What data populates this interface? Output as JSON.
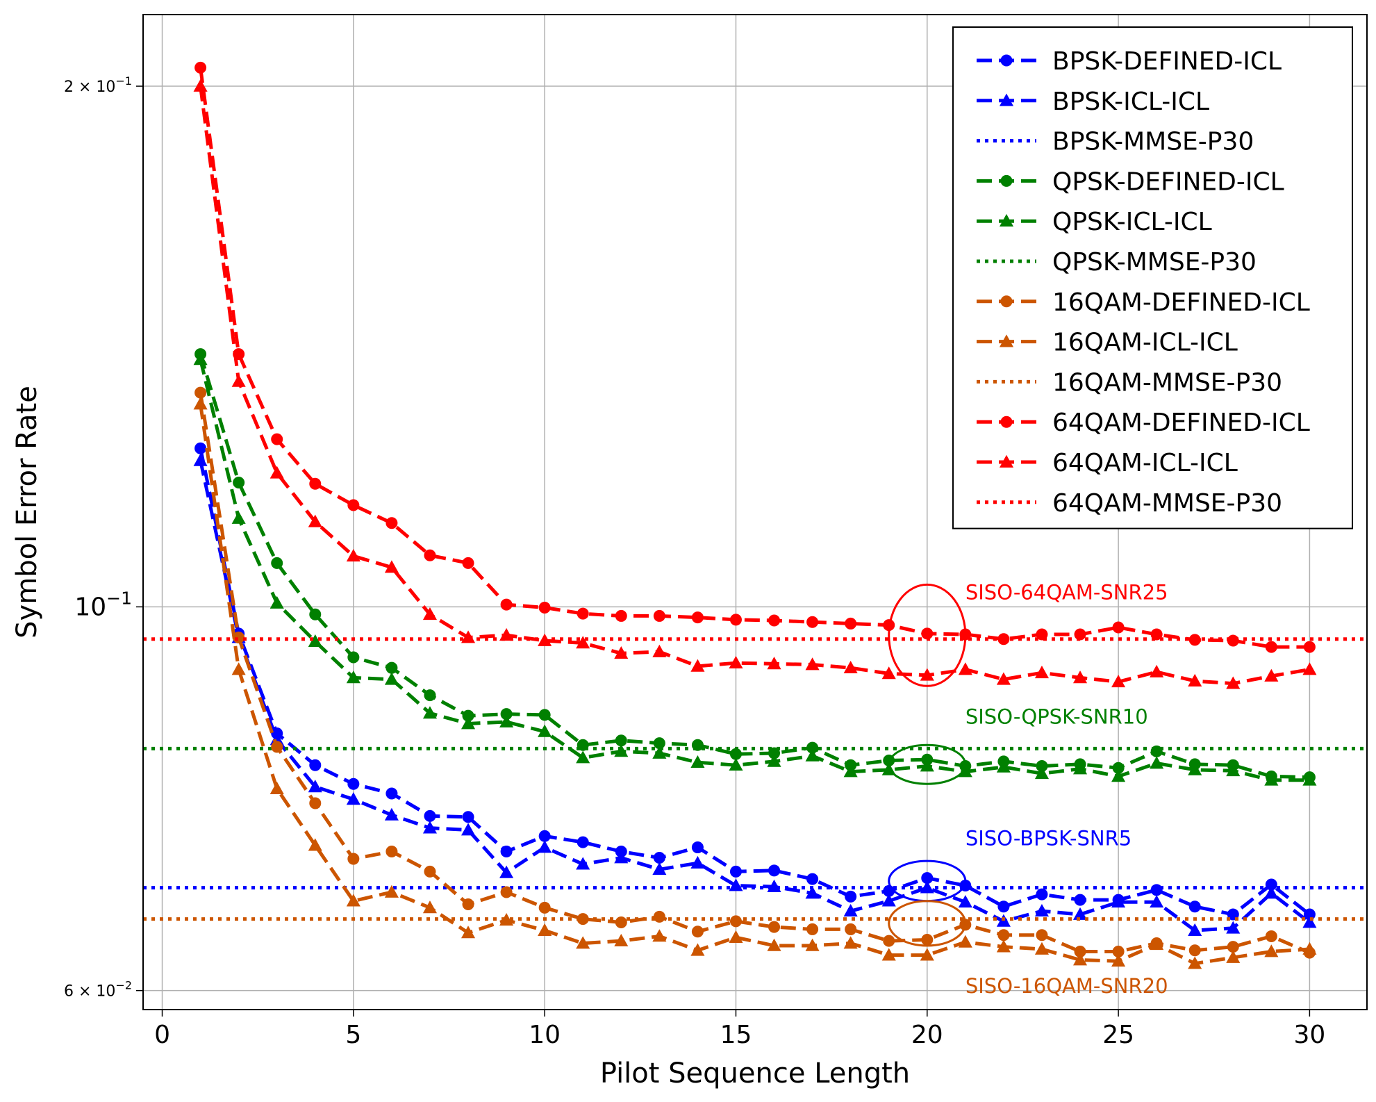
{
  "chart_data": {
    "type": "line",
    "title": "",
    "xlabel": "Pilot Sequence Length",
    "ylabel": "Symbol Error Rate",
    "yscale": "log",
    "xlim": [
      -0.5,
      31.5
    ],
    "ylim": [
      0.0585,
      0.22
    ],
    "grid": true,
    "legend_position": "top-right",
    "x_ticks": [
      0,
      5,
      10,
      15,
      20,
      25,
      30
    ],
    "x_tick_labels": [
      "0",
      "5",
      "10",
      "15",
      "20",
      "25",
      "30"
    ],
    "y_ticks": [
      0.06,
      0.1,
      0.2
    ],
    "y_tick_labels": [
      {
        "base": "6 × 10",
        "exp": "−2"
      },
      {
        "base": "10",
        "exp": "−1"
      },
      {
        "base": "2 × 10",
        "exp": "−1"
      }
    ],
    "x": [
      1,
      2,
      3,
      4,
      5,
      6,
      7,
      8,
      9,
      10,
      11,
      12,
      13,
      14,
      15,
      16,
      17,
      18,
      19,
      20,
      21,
      22,
      23,
      24,
      25,
      26,
      27,
      28,
      29,
      30
    ],
    "colors": {
      "BPSK": "#0000ff",
      "QPSK": "#008000",
      "16QAM": "#cc5500",
      "64QAM": "#ff0000"
    },
    "series": [
      {
        "name": "BPSK-DEFINED-ICL",
        "group": "BPSK",
        "style": "dashed",
        "marker": "circle",
        "values": [
          0.1235,
          0.0965,
          0.0845,
          0.081,
          0.079,
          0.078,
          0.0757,
          0.0756,
          0.0722,
          0.0737,
          0.0731,
          0.0722,
          0.0716,
          0.0726,
          0.0703,
          0.0704,
          0.0696,
          0.068,
          0.0685,
          0.0697,
          0.069,
          0.0671,
          0.0682,
          0.0677,
          0.0677,
          0.0686,
          0.0671,
          0.0664,
          0.0691,
          0.0664
        ]
      },
      {
        "name": "BPSK-ICL-ICL",
        "group": "BPSK",
        "style": "dashed",
        "marker": "triangle",
        "values": [
          0.1215,
          0.096,
          0.0838,
          0.0787,
          0.0774,
          0.0758,
          0.0745,
          0.0743,
          0.0702,
          0.0726,
          0.071,
          0.0716,
          0.0705,
          0.0711,
          0.069,
          0.0689,
          0.0683,
          0.0667,
          0.0676,
          0.0688,
          0.0675,
          0.0658,
          0.0667,
          0.0664,
          0.0675,
          0.0675,
          0.065,
          0.0652,
          0.0683,
          0.0657
        ]
      },
      {
        "name": "BPSK-MMSE-P30",
        "group": "BPSK",
        "style": "dotted",
        "marker": "none",
        "constant": 0.0688
      },
      {
        "name": "QPSK-DEFINED-ICL",
        "group": "QPSK",
        "style": "dashed",
        "marker": "circle",
        "values": [
          0.14,
          0.118,
          0.106,
          0.099,
          0.0935,
          0.0922,
          0.0889,
          0.0865,
          0.0867,
          0.0866,
          0.0832,
          0.0837,
          0.0834,
          0.0832,
          0.0822,
          0.0823,
          0.0829,
          0.081,
          0.0815,
          0.0816,
          0.0809,
          0.0814,
          0.0809,
          0.0811,
          0.0807,
          0.0825,
          0.0811,
          0.081,
          0.0798,
          0.0797
        ]
      },
      {
        "name": "QPSK-ICL-ICL",
        "group": "QPSK",
        "style": "dashed",
        "marker": "triangle",
        "values": [
          0.139,
          0.1125,
          0.1005,
          0.0955,
          0.091,
          0.0908,
          0.0868,
          0.0856,
          0.0858,
          0.0847,
          0.0818,
          0.0825,
          0.0823,
          0.0813,
          0.081,
          0.0814,
          0.082,
          0.0803,
          0.0805,
          0.0809,
          0.0803,
          0.0808,
          0.0801,
          0.0806,
          0.0798,
          0.0812,
          0.0805,
          0.0804,
          0.0794,
          0.0794
        ]
      },
      {
        "name": "QPSK-MMSE-P30",
        "group": "QPSK",
        "style": "dotted",
        "marker": "none",
        "constant": 0.0828
      },
      {
        "name": "16QAM-DEFINED-ICL",
        "group": "16QAM",
        "style": "dashed",
        "marker": "circle",
        "values": [
          0.133,
          0.096,
          0.083,
          0.077,
          0.0715,
          0.0722,
          0.0703,
          0.0673,
          0.0684,
          0.067,
          0.066,
          0.0657,
          0.0662,
          0.0649,
          0.0658,
          0.0653,
          0.0651,
          0.0651,
          0.0641,
          0.0642,
          0.0655,
          0.0646,
          0.0646,
          0.0632,
          0.0632,
          0.0639,
          0.0633,
          0.0636,
          0.0645,
          0.0631
        ]
      },
      {
        "name": "16QAM-ICL-ICL",
        "group": "16QAM",
        "style": "dashed",
        "marker": "triangle",
        "values": [
          0.131,
          0.092,
          0.0785,
          0.0728,
          0.0676,
          0.0684,
          0.067,
          0.0648,
          0.0659,
          0.065,
          0.0639,
          0.0641,
          0.0645,
          0.0633,
          0.0644,
          0.0637,
          0.0637,
          0.0639,
          0.0629,
          0.0629,
          0.064,
          0.0636,
          0.0634,
          0.0625,
          0.0624,
          0.0638,
          0.0622,
          0.0627,
          0.0632,
          0.0634
        ]
      },
      {
        "name": "16QAM-MMSE-P30",
        "group": "16QAM",
        "style": "dotted",
        "marker": "none",
        "constant": 0.066
      },
      {
        "name": "64QAM-DEFINED-ICL",
        "group": "64QAM",
        "style": "dashed",
        "marker": "circle",
        "values": [
          0.205,
          0.14,
          0.125,
          0.1178,
          0.1145,
          0.1118,
          0.1071,
          0.106,
          0.1003,
          0.0999,
          0.0991,
          0.0988,
          0.0988,
          0.0986,
          0.0983,
          0.0982,
          0.098,
          0.0978,
          0.0976,
          0.0965,
          0.0964,
          0.0958,
          0.0964,
          0.0964,
          0.0973,
          0.0964,
          0.0957,
          0.0956,
          0.0948,
          0.0948
        ]
      },
      {
        "name": "64QAM-ICL-ICL",
        "group": "64QAM",
        "style": "dashed",
        "marker": "triangle",
        "values": [
          0.2,
          0.135,
          0.1195,
          0.112,
          0.107,
          0.1054,
          0.099,
          0.096,
          0.0963,
          0.0956,
          0.0953,
          0.094,
          0.0942,
          0.0924,
          0.0928,
          0.0927,
          0.0926,
          0.0922,
          0.0915,
          0.0913,
          0.092,
          0.0908,
          0.0916,
          0.091,
          0.0905,
          0.0917,
          0.0906,
          0.0903,
          0.0912,
          0.092
        ]
      },
      {
        "name": "64QAM-MMSE-P30",
        "group": "64QAM",
        "style": "dotted",
        "marker": "none",
        "constant": 0.0958
      }
    ],
    "annotations": [
      {
        "text": "SISO-64QAM-SNR25",
        "group": "64QAM",
        "x": 21.0,
        "y": 0.101
      },
      {
        "text": "SISO-QPSK-SNR10",
        "group": "QPSK",
        "x": 21.0,
        "y": 0.0856
      },
      {
        "text": "SISO-BPSK-SNR5",
        "group": "BPSK",
        "x": 21.0,
        "y": 0.0728
      },
      {
        "text": "SISO-16QAM-SNR20",
        "group": "16QAM",
        "x": 21.0,
        "y": 0.0598
      }
    ],
    "ellipses": [
      {
        "group": "64QAM",
        "cx": 20.0,
        "cy": 0.0963,
        "rx": 1.0,
        "y_top": 0.103,
        "y_bottom": 0.09
      },
      {
        "group": "QPSK",
        "cx": 20.0,
        "cy": 0.0812,
        "rx": 1.0,
        "y_top": 0.0832,
        "y_bottom": 0.079
      },
      {
        "group": "BPSK",
        "cx": 20.0,
        "cy": 0.0694,
        "rx": 1.0,
        "y_top": 0.0713,
        "y_bottom": 0.0676
      },
      {
        "group": "16QAM",
        "cx": 20.0,
        "cy": 0.0658,
        "rx": 1.0,
        "y_top": 0.0676,
        "y_bottom": 0.0637
      }
    ]
  }
}
